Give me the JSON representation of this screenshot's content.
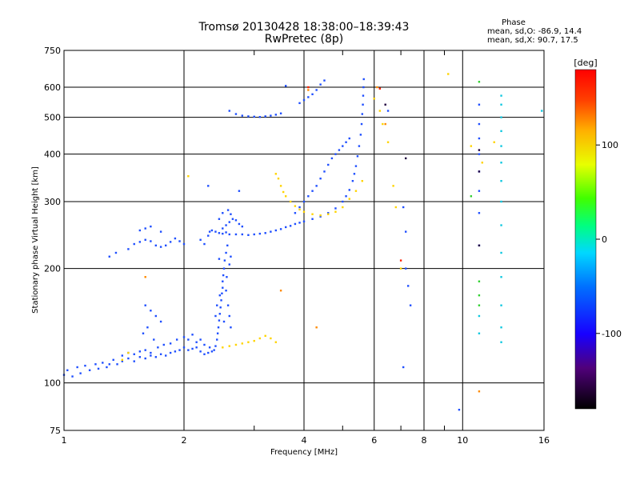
{
  "chart_data": {
    "type": "scatter",
    "title": "Tromsø 20130428 18:38:00–18:39:43",
    "subtitle": "RwPretec (8p)",
    "xlabel": "Frequency [MHz]",
    "ylabel": "Stationary phase Virtual Height [km]",
    "x_scale": "log",
    "y_scale": "log",
    "xlim": [
      1,
      16
    ],
    "ylim": [
      75,
      750
    ],
    "x_ticks": [
      1,
      2,
      4,
      6,
      8,
      10,
      16
    ],
    "x_tick_labels": [
      "1",
      "2",
      "4",
      "6",
      "8",
      "10",
      "16"
    ],
    "x_minor_ticks": [
      3,
      5,
      7,
      9
    ],
    "y_ticks": [
      75,
      100,
      200,
      300,
      400,
      500,
      600,
      750
    ],
    "y_tick_labels": [
      "75",
      "100",
      "200",
      "300",
      "400",
      "500",
      "600",
      "750"
    ],
    "grid": true,
    "phase_stats": {
      "heading": "Phase",
      "line_o": "mean, sd,O: -86.9, 14.4",
      "line_x": "mean, sd,X:  90.7, 17.5"
    },
    "colorbar": {
      "label": "[deg]",
      "range": [
        -180,
        180
      ],
      "tick_values": [
        100,
        0,
        -100
      ],
      "tick_labels": [
        "100",
        "0",
        "-100"
      ]
    },
    "colors": {
      "blue": "#1f4fff",
      "yellow": "#ffd400",
      "cyan": "#10c8e0",
      "orange": "#ff8a00",
      "red": "#ff2000",
      "green": "#30d030",
      "dark": "#200040"
    },
    "series": [
      {
        "color_key": "blue",
        "points": [
          [
            1.0,
            105
          ],
          [
            1.02,
            108
          ],
          [
            1.05,
            104
          ],
          [
            1.08,
            110
          ],
          [
            1.1,
            106
          ],
          [
            1.13,
            111
          ],
          [
            1.16,
            108
          ],
          [
            1.2,
            112
          ],
          [
            1.22,
            109
          ],
          [
            1.25,
            113
          ],
          [
            1.28,
            110
          ],
          [
            1.3,
            112
          ],
          [
            1.33,
            115
          ],
          [
            1.36,
            112
          ],
          [
            1.4,
            114
          ],
          [
            1.45,
            116
          ],
          [
            1.5,
            114
          ],
          [
            1.55,
            117
          ],
          [
            1.6,
            116
          ],
          [
            1.65,
            118
          ],
          [
            1.7,
            117
          ],
          [
            1.75,
            119
          ],
          [
            1.8,
            118
          ],
          [
            1.85,
            120
          ],
          [
            1.9,
            121
          ],
          [
            1.95,
            122
          ],
          [
            2.0,
            124
          ],
          [
            2.05,
            122
          ],
          [
            2.1,
            123
          ],
          [
            2.15,
            124
          ],
          [
            2.2,
            121
          ],
          [
            2.25,
            119
          ],
          [
            2.3,
            120
          ],
          [
            2.35,
            121
          ]
        ]
      },
      {
        "color_key": "blue",
        "points": [
          [
            1.4,
            118
          ],
          [
            1.45,
            120
          ],
          [
            1.5,
            119
          ],
          [
            1.55,
            121
          ],
          [
            1.6,
            122
          ],
          [
            1.65,
            120
          ],
          [
            1.72,
            124
          ],
          [
            1.78,
            126
          ],
          [
            1.85,
            127
          ],
          [
            1.92,
            130
          ],
          [
            2.0,
            132
          ],
          [
            2.05,
            130
          ],
          [
            2.1,
            134
          ],
          [
            2.15,
            128
          ],
          [
            2.2,
            130
          ],
          [
            2.25,
            126
          ],
          [
            2.32,
            124
          ],
          [
            2.38,
            122
          ]
        ]
      },
      {
        "color_key": "blue",
        "points": [
          [
            2.4,
            125
          ],
          [
            2.42,
            130
          ],
          [
            2.43,
            135
          ],
          [
            2.44,
            140
          ],
          [
            2.45,
            146
          ],
          [
            2.46,
            152
          ],
          [
            2.47,
            158
          ],
          [
            2.48,
            165
          ],
          [
            2.49,
            172
          ],
          [
            2.5,
            178
          ],
          [
            2.5,
            185
          ],
          [
            2.51,
            192
          ],
          [
            2.52,
            200
          ],
          [
            2.53,
            210
          ],
          [
            2.55,
            220
          ],
          [
            2.57,
            230
          ],
          [
            2.4,
            150
          ],
          [
            2.42,
            160
          ],
          [
            2.46,
            170
          ],
          [
            2.55,
            175
          ],
          [
            2.58,
            160
          ],
          [
            2.6,
            150
          ],
          [
            2.62,
            140
          ],
          [
            2.52,
            145
          ],
          [
            2.56,
            190
          ],
          [
            2.6,
            205
          ],
          [
            2.45,
            212
          ],
          [
            2.62,
            215
          ]
        ]
      },
      {
        "color_key": "blue",
        "points": [
          [
            2.2,
            238
          ],
          [
            2.25,
            232
          ],
          [
            2.3,
            244
          ],
          [
            2.32,
            250
          ],
          [
            2.35,
            252
          ],
          [
            2.4,
            250
          ],
          [
            2.45,
            248
          ],
          [
            2.5,
            247
          ],
          [
            2.55,
            249
          ],
          [
            2.6,
            246
          ],
          [
            2.7,
            246
          ],
          [
            2.8,
            246
          ],
          [
            2.9,
            245
          ],
          [
            3.0,
            246
          ],
          [
            3.1,
            247
          ],
          [
            3.2,
            248
          ],
          [
            3.3,
            250
          ],
          [
            3.4,
            252
          ],
          [
            3.5,
            254
          ],
          [
            3.6,
            257
          ],
          [
            3.7,
            259
          ],
          [
            3.8,
            262
          ],
          [
            3.9,
            264
          ],
          [
            4.0,
            266
          ],
          [
            4.2,
            270
          ],
          [
            4.4,
            274
          ],
          [
            4.6,
            280
          ],
          [
            4.8,
            288
          ],
          [
            5.0,
            300
          ],
          [
            5.1,
            310
          ],
          [
            5.2,
            322
          ],
          [
            5.3,
            340
          ],
          [
            5.35,
            355
          ],
          [
            5.4,
            372
          ],
          [
            5.45,
            395
          ],
          [
            5.5,
            420
          ],
          [
            5.55,
            450
          ],
          [
            5.58,
            480
          ],
          [
            5.6,
            510
          ],
          [
            5.62,
            540
          ],
          [
            5.63,
            570
          ],
          [
            5.64,
            600
          ],
          [
            5.65,
            630
          ]
        ]
      },
      {
        "color_key": "blue",
        "points": [
          [
            2.5,
            255
          ],
          [
            2.55,
            260
          ],
          [
            2.6,
            265
          ],
          [
            2.65,
            270
          ],
          [
            2.7,
            268
          ],
          [
            2.75,
            262
          ],
          [
            2.8,
            258
          ],
          [
            2.45,
            270
          ],
          [
            2.5,
            280
          ],
          [
            2.58,
            285
          ],
          [
            2.62,
            278
          ]
        ]
      },
      {
        "color_key": "blue",
        "points": [
          [
            1.3,
            215
          ],
          [
            1.35,
            220
          ],
          [
            1.45,
            225
          ],
          [
            1.5,
            232
          ],
          [
            1.55,
            235
          ],
          [
            1.6,
            238
          ],
          [
            1.65,
            236
          ],
          [
            1.7,
            230
          ],
          [
            1.75,
            228
          ],
          [
            1.8,
            230
          ],
          [
            1.85,
            235
          ],
          [
            1.9,
            240
          ],
          [
            1.95,
            236
          ],
          [
            2.0,
            232
          ],
          [
            1.55,
            252
          ],
          [
            1.6,
            255
          ],
          [
            1.65,
            258
          ],
          [
            1.75,
            250
          ]
        ]
      },
      {
        "color_key": "blue",
        "points": [
          [
            2.6,
            520
          ],
          [
            2.7,
            510
          ],
          [
            2.8,
            505
          ],
          [
            2.9,
            503
          ],
          [
            3.0,
            502
          ],
          [
            3.1,
            501
          ],
          [
            3.2,
            503
          ],
          [
            3.3,
            505
          ],
          [
            3.4,
            508
          ],
          [
            3.5,
            512
          ]
        ]
      },
      {
        "color_key": "blue",
        "points": [
          [
            3.9,
            545
          ],
          [
            4.0,
            555
          ],
          [
            4.1,
            565
          ],
          [
            4.2,
            575
          ],
          [
            4.3,
            590
          ],
          [
            4.4,
            610
          ],
          [
            4.5,
            625
          ]
        ]
      },
      {
        "color_key": "blue",
        "points": [
          [
            3.8,
            280
          ],
          [
            3.9,
            290
          ],
          [
            4.0,
            300
          ],
          [
            4.1,
            310
          ],
          [
            4.2,
            320
          ],
          [
            4.3,
            330
          ],
          [
            4.4,
            345
          ],
          [
            4.5,
            360
          ],
          [
            4.6,
            375
          ],
          [
            4.7,
            390
          ],
          [
            4.8,
            400
          ],
          [
            4.9,
            410
          ],
          [
            5.0,
            420
          ],
          [
            5.1,
            430
          ],
          [
            5.2,
            440
          ]
        ]
      },
      {
        "color_key": "blue",
        "points": [
          [
            1.6,
            160
          ],
          [
            1.65,
            155
          ],
          [
            1.7,
            150
          ],
          [
            1.75,
            145
          ],
          [
            1.62,
            140
          ],
          [
            1.58,
            135
          ],
          [
            1.68,
            130
          ]
        ]
      },
      {
        "color_key": "blue",
        "points": [
          [
            2.3,
            330
          ],
          [
            2.75,
            320
          ],
          [
            3.6,
            605
          ],
          [
            6.5,
            520
          ],
          [
            7.1,
            290
          ],
          [
            7.2,
            250
          ],
          [
            7.2,
            200
          ],
          [
            7.3,
            180
          ],
          [
            7.4,
            160
          ],
          [
            7.1,
            110
          ],
          [
            9.8,
            85
          ],
          [
            11.0,
            540
          ],
          [
            11.0,
            480
          ],
          [
            11.0,
            440
          ],
          [
            11.0,
            400
          ],
          [
            11.0,
            360
          ],
          [
            11.0,
            320
          ],
          [
            11.0,
            280
          ],
          [
            11.0,
            230
          ]
        ]
      },
      {
        "color_key": "yellow",
        "points": [
          [
            2.5,
            124
          ],
          [
            2.6,
            125
          ],
          [
            2.7,
            126
          ],
          [
            2.8,
            127
          ],
          [
            2.9,
            128
          ],
          [
            3.0,
            129
          ],
          [
            3.1,
            131
          ],
          [
            3.2,
            133
          ],
          [
            3.3,
            131
          ],
          [
            3.4,
            128
          ]
        ]
      },
      {
        "color_key": "yellow",
        "points": [
          [
            3.4,
            355
          ],
          [
            3.45,
            345
          ],
          [
            3.5,
            330
          ],
          [
            3.55,
            318
          ],
          [
            3.6,
            310
          ],
          [
            3.7,
            300
          ],
          [
            3.8,
            292
          ],
          [
            3.9,
            286
          ],
          [
            4.0,
            282
          ],
          [
            4.2,
            278
          ],
          [
            4.4,
            276
          ],
          [
            4.6,
            278
          ],
          [
            4.8,
            282
          ],
          [
            5.0,
            290
          ],
          [
            5.2,
            305
          ],
          [
            5.4,
            320
          ],
          [
            5.6,
            340
          ]
        ]
      },
      {
        "color_key": "yellow",
        "points": [
          [
            6.0,
            560
          ],
          [
            6.2,
            520
          ],
          [
            6.3,
            480
          ],
          [
            6.5,
            430
          ],
          [
            6.7,
            330
          ],
          [
            6.8,
            290
          ],
          [
            7.0,
            200
          ],
          [
            9.2,
            650
          ],
          [
            10.5,
            420
          ],
          [
            11.2,
            380
          ],
          [
            12.0,
            430
          ],
          [
            1.4,
            115
          ],
          [
            1.45,
            120
          ],
          [
            2.05,
            350
          ]
        ]
      },
      {
        "color_key": "cyan",
        "points": [
          [
            12.5,
            570
          ],
          [
            12.5,
            540
          ],
          [
            12.5,
            500
          ],
          [
            12.5,
            460
          ],
          [
            12.5,
            420
          ],
          [
            12.5,
            380
          ],
          [
            12.5,
            340
          ],
          [
            12.5,
            300
          ],
          [
            12.5,
            260
          ],
          [
            12.5,
            220
          ],
          [
            12.5,
            190
          ],
          [
            12.5,
            160
          ],
          [
            12.5,
            140
          ],
          [
            12.5,
            128
          ],
          [
            11.0,
            150
          ],
          [
            11.0,
            135
          ],
          [
            15.8,
            520
          ]
        ]
      },
      {
        "color_key": "orange",
        "points": [
          [
            6.1,
            600
          ],
          [
            6.4,
            480
          ],
          [
            3.5,
            175
          ],
          [
            4.1,
            590
          ],
          [
            11.0,
            95
          ],
          [
            4.3,
            140
          ],
          [
            1.6,
            190
          ]
        ]
      },
      {
        "color_key": "red",
        "points": [
          [
            6.2,
            595
          ],
          [
            7.0,
            210
          ],
          [
            4.1,
            600
          ]
        ]
      },
      {
        "color_key": "green",
        "points": [
          [
            11.0,
            620
          ],
          [
            11.0,
            185
          ],
          [
            11.0,
            170
          ],
          [
            11.0,
            160
          ],
          [
            10.5,
            310
          ]
        ]
      },
      {
        "color_key": "dark",
        "points": [
          [
            6.4,
            540
          ],
          [
            7.2,
            390
          ],
          [
            11.0,
            410
          ],
          [
            11.0,
            230
          ],
          [
            11.0,
            360
          ]
        ]
      }
    ]
  }
}
